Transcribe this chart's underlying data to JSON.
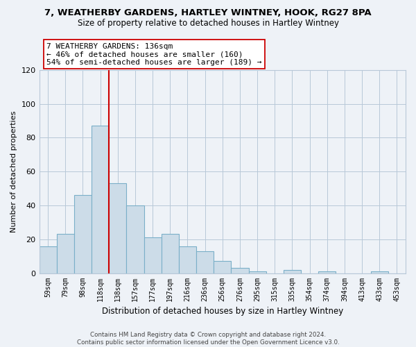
{
  "title_line1": "7, WEATHERBY GARDENS, HARTLEY WINTNEY, HOOK, RG27 8PA",
  "title_line2": "Size of property relative to detached houses in Hartley Wintney",
  "xlabel": "Distribution of detached houses by size in Hartley Wintney",
  "ylabel": "Number of detached properties",
  "bar_labels": [
    "59sqm",
    "79sqm",
    "98sqm",
    "118sqm",
    "138sqm",
    "157sqm",
    "177sqm",
    "197sqm",
    "216sqm",
    "236sqm",
    "256sqm",
    "276sqm",
    "295sqm",
    "315sqm",
    "335sqm",
    "354sqm",
    "374sqm",
    "394sqm",
    "413sqm",
    "433sqm",
    "453sqm"
  ],
  "bar_values": [
    16,
    23,
    46,
    87,
    53,
    40,
    21,
    23,
    16,
    13,
    7,
    3,
    1,
    0,
    2,
    0,
    1,
    0,
    0,
    1,
    0
  ],
  "bar_color": "#ccdce8",
  "bar_edge_color": "#7aafc8",
  "vline_color": "#cc0000",
  "vline_position": 4,
  "annotation_text": "7 WEATHERBY GARDENS: 136sqm\n← 46% of detached houses are smaller (160)\n54% of semi-detached houses are larger (189) →",
  "ylim": [
    0,
    120
  ],
  "yticks": [
    0,
    20,
    40,
    60,
    80,
    100,
    120
  ],
  "footnote": "Contains HM Land Registry data © Crown copyright and database right 2024.\nContains public sector information licensed under the Open Government Licence v3.0.",
  "bg_color": "#eef2f7",
  "plot_bg_color": "#eef2f7",
  "grid_color": "#b8c8d8"
}
